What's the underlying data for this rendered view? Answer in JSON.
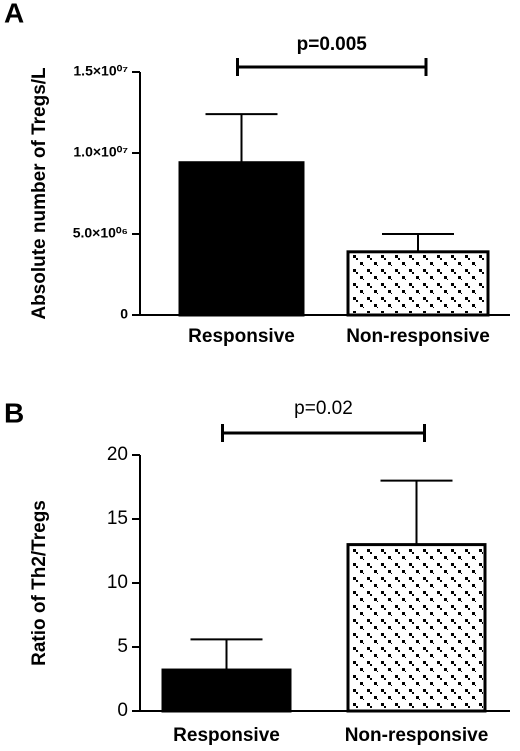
{
  "chart_data": [
    {
      "type": "bar",
      "panel_label": "A",
      "ylabel": "Absolute number of  Tregs/L",
      "categories": [
        "Responsive",
        "Non-responsive"
      ],
      "values": [
        9400000,
        3900000
      ],
      "errors": [
        3000000,
        1100000
      ],
      "colors": [
        "#000000",
        "#ffffff"
      ],
      "hatch": [
        false,
        true
      ],
      "ylim": [
        0,
        15000000
      ],
      "yticks": [
        0,
        {
          "value": 5000000,
          "label": "5.0×10⁰⁶"
        },
        {
          "value": 10000000,
          "label": "1.0×10⁰⁷"
        },
        {
          "value": 15000000,
          "label": "1.5×10⁰⁷"
        }
      ],
      "annotation": "p=0.005"
    },
    {
      "type": "bar",
      "panel_label": "B",
      "ylabel": "Ratio of Th2/Tregs",
      "categories": [
        "Responsive",
        "Non-responsive"
      ],
      "values": [
        3.2,
        13.0
      ],
      "errors": [
        2.4,
        5.0
      ],
      "colors": [
        "#000000",
        "#ffffff"
      ],
      "hatch": [
        false,
        true
      ],
      "ylim": [
        0,
        20
      ],
      "yticks": [
        0,
        5,
        10,
        15,
        20
      ],
      "annotation": "p=0.02"
    }
  ]
}
